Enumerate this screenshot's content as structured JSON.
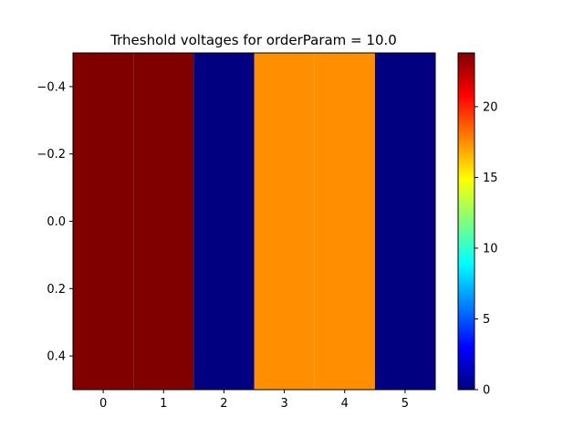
{
  "chart_data": {
    "type": "heatmap",
    "title": "Trheshold voltages for orderParam = 10.0",
    "xlabel": "",
    "ylabel": "",
    "colormap": "jet",
    "x_extent": [
      -0.5,
      5.5
    ],
    "y_extent": [
      -0.5,
      0.5
    ],
    "y_inverted": true,
    "columns": [
      0,
      1,
      2,
      3,
      4,
      5
    ],
    "values": [
      [
        23.8,
        23.8,
        0.0,
        17.5,
        17.5,
        0.0
      ]
    ],
    "x_ticks": [
      0,
      1,
      2,
      3,
      4,
      5
    ],
    "x_tick_labels": [
      "0",
      "1",
      "2",
      "3",
      "4",
      "5"
    ],
    "y_ticks": [
      -0.4,
      -0.2,
      0.0,
      0.2,
      0.4
    ],
    "y_tick_labels": [
      "−0.4",
      "−0.2",
      "0.0",
      "0.2",
      "0.4"
    ],
    "colorbar": {
      "range": [
        0,
        23.8
      ],
      "ticks": [
        0,
        5,
        10,
        15,
        20
      ],
      "tick_labels": [
        "0",
        "5",
        "10",
        "15",
        "20"
      ]
    },
    "grid": false
  }
}
